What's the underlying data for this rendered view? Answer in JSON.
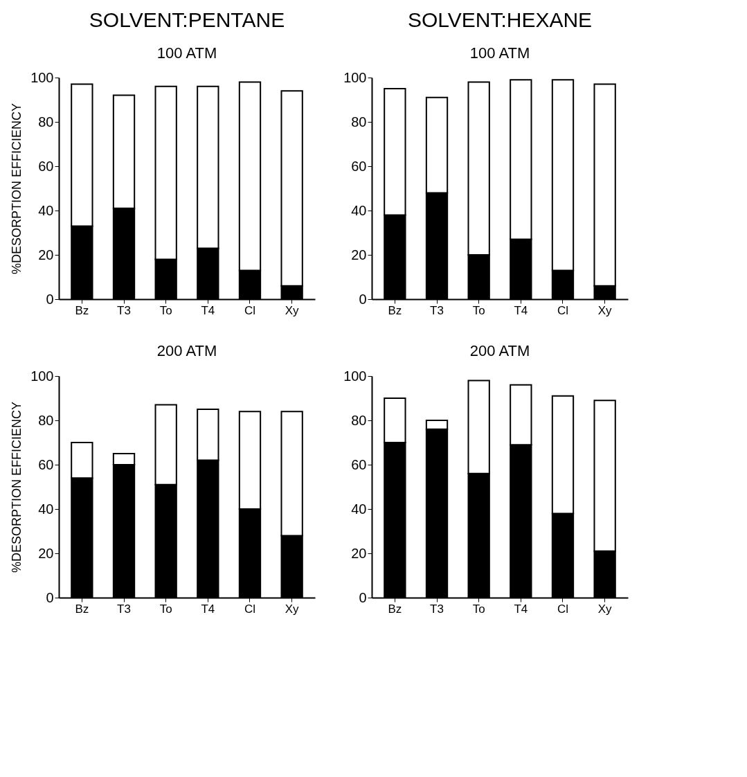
{
  "chart_data": [
    {
      "type": "bar",
      "title": "SOLVENT:PENTANE",
      "subtitle": "100 ATM",
      "ylabel": "%DESORPTION EFFICIENCY",
      "categories": [
        "Bz",
        "T3",
        "To",
        "T4",
        "Cl",
        "Xy"
      ],
      "stacked": true,
      "ylim": [
        0,
        100
      ],
      "yticks": [
        0,
        20,
        40,
        60,
        80,
        100
      ],
      "grid": false,
      "legend": false,
      "series": [
        {
          "color": "#000000",
          "values": [
            33,
            41,
            18,
            23,
            13,
            6
          ]
        },
        {
          "color": "#ffffff",
          "values": [
            64,
            51,
            78,
            73,
            85,
            88
          ]
        }
      ]
    },
    {
      "type": "bar",
      "title": "SOLVENT:HEXANE",
      "subtitle": "100 ATM",
      "categories": [
        "Bz",
        "T3",
        "To",
        "T4",
        "Cl",
        "Xy"
      ],
      "stacked": true,
      "ylim": [
        0,
        100
      ],
      "yticks": [
        0,
        20,
        40,
        60,
        80,
        100
      ],
      "grid": false,
      "legend": false,
      "series": [
        {
          "color": "#000000",
          "values": [
            38,
            48,
            20,
            27,
            13,
            6
          ]
        },
        {
          "color": "#ffffff",
          "values": [
            57,
            43,
            78,
            72,
            86,
            91
          ]
        }
      ]
    },
    {
      "type": "bar",
      "title": "200 ATM",
      "ylabel": "%DESORPTION EFFICIENCY",
      "categories": [
        "Bz",
        "T3",
        "To",
        "T4",
        "Cl",
        "Xy"
      ],
      "stacked": true,
      "ylim": [
        0,
        100
      ],
      "yticks": [
        0,
        20,
        40,
        60,
        80,
        100
      ],
      "grid": false,
      "legend": false,
      "series": [
        {
          "color": "#000000",
          "values": [
            54,
            60,
            51,
            62,
            40,
            28
          ]
        },
        {
          "color": "#ffffff",
          "values": [
            16,
            5,
            36,
            23,
            44,
            56
          ]
        }
      ]
    },
    {
      "type": "bar",
      "title": "200 ATM",
      "categories": [
        "Bz",
        "T3",
        "To",
        "T4",
        "Cl",
        "Xy"
      ],
      "stacked": true,
      "ylim": [
        0,
        100
      ],
      "yticks": [
        0,
        20,
        40,
        60,
        80,
        100
      ],
      "grid": false,
      "legend": false,
      "series": [
        {
          "color": "#000000",
          "values": [
            70,
            76,
            56,
            69,
            38,
            21
          ]
        },
        {
          "color": "#ffffff",
          "values": [
            20,
            4,
            42,
            27,
            53,
            68
          ]
        }
      ]
    }
  ]
}
